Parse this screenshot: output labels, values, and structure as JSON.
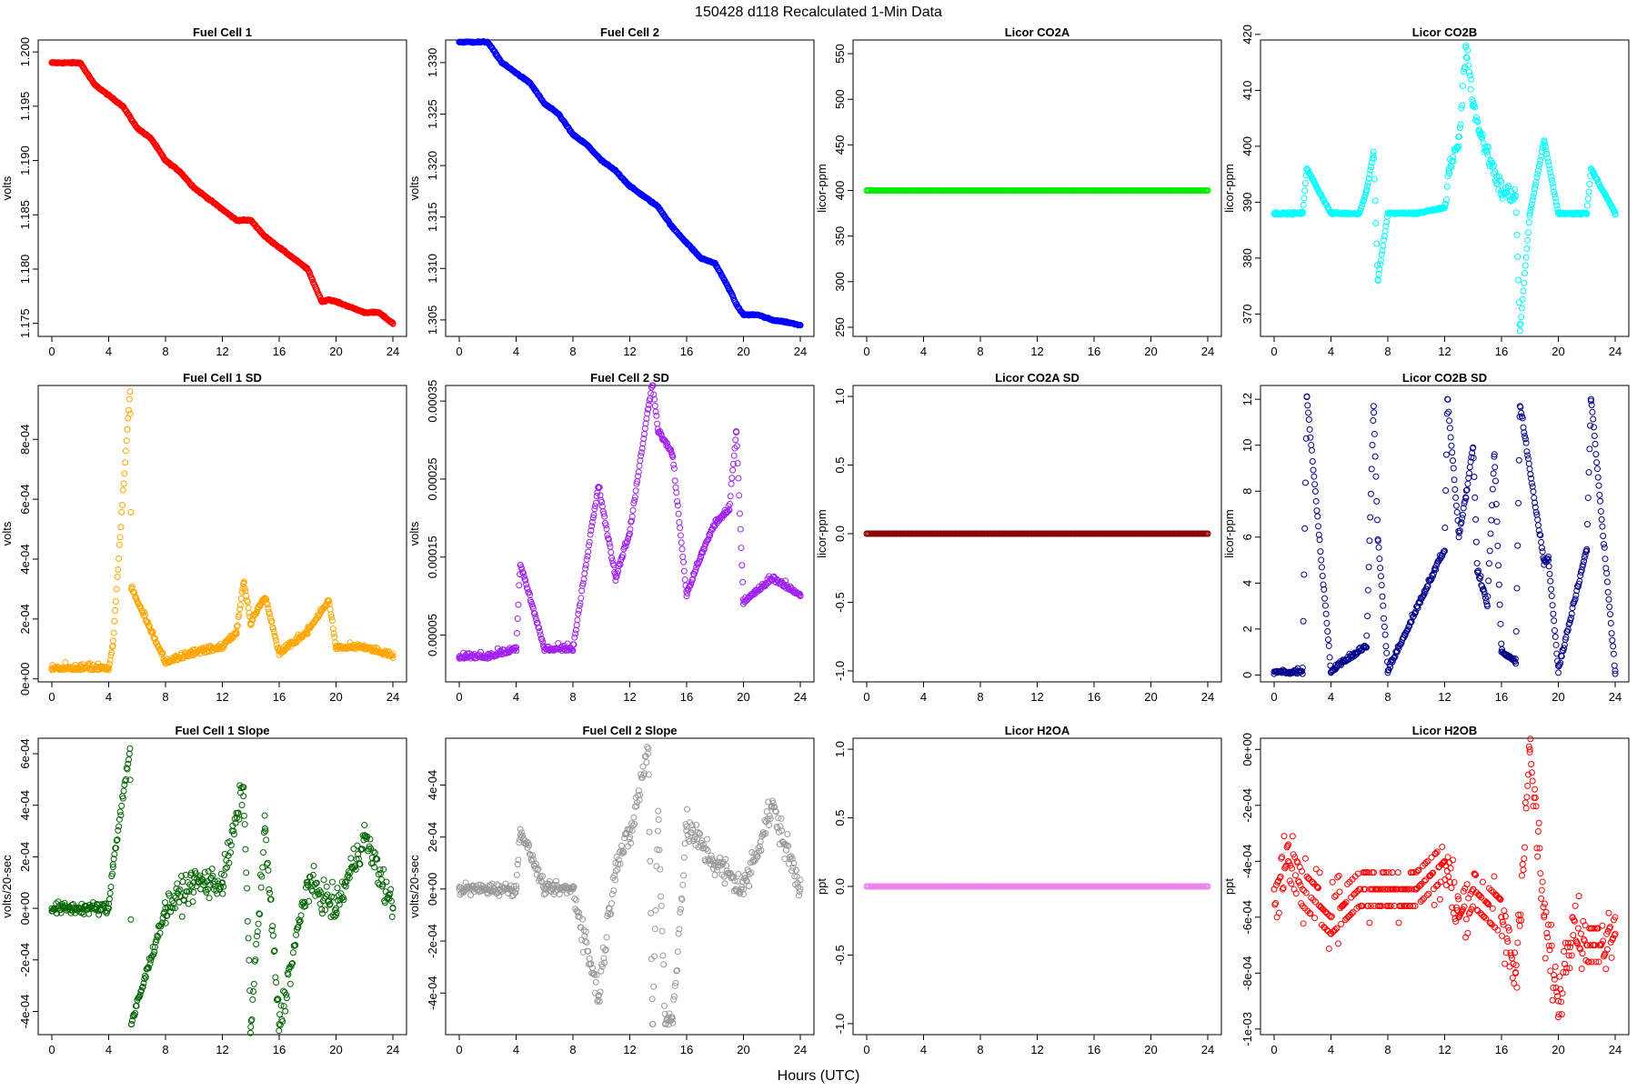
{
  "figure": {
    "title": "150428   d118   Recalculated 1-Min Data",
    "xlabel": "Hours (UTC)"
  },
  "chart_data": [
    {
      "id": "fc1",
      "type": "scatter",
      "title": "Fuel Cell 1",
      "ylabel": "volts",
      "color": "#ff0000",
      "xlim": [
        0,
        24
      ],
      "xticks": [
        0,
        4,
        8,
        12,
        16,
        20,
        24
      ],
      "ylim": [
        1.1738,
        1.2011
      ],
      "yticks": [
        1.175,
        1.18,
        1.185,
        1.19,
        1.195,
        1.2
      ],
      "yticklabels": [
        "1.175",
        "1.180",
        "1.185",
        "1.190",
        "1.195",
        "1.200"
      ],
      "x": [
        0,
        1,
        2,
        3,
        4,
        5,
        6,
        7,
        8,
        9,
        10,
        11,
        12,
        13,
        14,
        15,
        16,
        17,
        18,
        19,
        19.5,
        20,
        21,
        22,
        23,
        24
      ],
      "y": [
        1.199,
        1.199,
        1.199,
        1.197,
        1.196,
        1.195,
        1.193,
        1.192,
        1.19,
        1.189,
        1.1875,
        1.1865,
        1.1855,
        1.1845,
        1.1845,
        1.183,
        1.182,
        1.181,
        1.18,
        1.177,
        1.1772,
        1.177,
        1.1765,
        1.176,
        1.176,
        1.175
      ]
    },
    {
      "id": "fc2",
      "type": "scatter",
      "title": "Fuel Cell 2",
      "ylabel": "volts",
      "color": "#0000ff",
      "xlim": [
        0,
        24
      ],
      "xticks": [
        0,
        4,
        8,
        12,
        16,
        20,
        24
      ],
      "ylim": [
        1.3034,
        1.3322
      ],
      "yticks": [
        1.305,
        1.31,
        1.315,
        1.32,
        1.325,
        1.33
      ],
      "yticklabels": [
        "1.305",
        "1.310",
        "1.315",
        "1.320",
        "1.325",
        "1.330"
      ],
      "x": [
        0,
        1,
        2,
        3,
        4,
        5,
        6,
        7,
        8,
        9,
        10,
        11,
        12,
        13,
        14,
        15,
        16,
        17,
        18,
        19,
        19.5,
        20,
        21,
        22,
        23,
        24
      ],
      "y": [
        1.332,
        1.332,
        1.332,
        1.33,
        1.329,
        1.328,
        1.326,
        1.325,
        1.323,
        1.322,
        1.3205,
        1.3195,
        1.318,
        1.317,
        1.316,
        1.314,
        1.3125,
        1.311,
        1.3105,
        1.308,
        1.3065,
        1.3055,
        1.3055,
        1.305,
        1.3048,
        1.3045
      ]
    },
    {
      "id": "co2a",
      "type": "scatter",
      "title": "Licor CO2A",
      "ylabel": "licor-ppm",
      "color": "#00ee00",
      "xlim": [
        0,
        24
      ],
      "xticks": [
        0,
        4,
        8,
        12,
        16,
        20,
        24
      ],
      "ylim": [
        240,
        565
      ],
      "yticks": [
        250,
        300,
        350,
        400,
        450,
        500,
        550
      ],
      "yticklabels": [
        "250",
        "300",
        "350",
        "400",
        "450",
        "500",
        "550"
      ],
      "x": [
        0,
        24
      ],
      "y": [
        400,
        400
      ]
    },
    {
      "id": "co2b",
      "type": "scatter",
      "title": "Licor CO2B",
      "ylabel": "licor-ppm",
      "color": "#00ffff",
      "xlim": [
        0,
        24
      ],
      "xticks": [
        0,
        4,
        8,
        12,
        16,
        20,
        24
      ],
      "ylim": [
        366,
        419
      ],
      "yticks": [
        370,
        380,
        390,
        400,
        410,
        420
      ],
      "yticklabels": [
        "370",
        "380",
        "390",
        "400",
        "410",
        "420"
      ],
      "x": [
        0,
        2,
        2.3,
        4,
        6,
        6.5,
        7,
        7.3,
        8,
        10,
        12,
        12.3,
        13,
        13.5,
        14,
        14.5,
        15,
        16,
        17,
        17.3,
        18,
        19,
        20,
        22,
        22.3,
        24
      ],
      "y": [
        388,
        388,
        396,
        388,
        388,
        392,
        399,
        376,
        388,
        388,
        389,
        396,
        400,
        418,
        408,
        402,
        399,
        392,
        391,
        367,
        388,
        401,
        388,
        388,
        396,
        388
      ]
    },
    {
      "id": "fc1sd",
      "type": "scatter",
      "title": "Fuel Cell 1 SD",
      "ylabel": "volts",
      "color": "#ffa500",
      "xlim": [
        0,
        24
      ],
      "xticks": [
        0,
        4,
        8,
        12,
        16,
        20,
        24
      ],
      "ylim": [
        -1e-05,
        0.00098
      ],
      "yticks": [
        0,
        0.0002,
        0.0004,
        0.0006,
        0.0008
      ],
      "yticklabels": [
        "0e+00",
        "2e-04",
        "4e-04",
        "6e-04",
        "8e-04"
      ],
      "x": [
        0,
        2,
        4,
        4.3,
        5.5,
        5.6,
        8,
        10,
        12,
        13,
        13.5,
        14,
        15,
        16,
        18,
        19.5,
        20,
        22,
        24
      ],
      "y": [
        3e-05,
        3e-05,
        3e-05,
        0.00011,
        0.00096,
        0.0003,
        5e-05,
        8e-05,
        0.0001,
        0.00015,
        0.00032,
        0.00018,
        0.00027,
        8e-05,
        0.00015,
        0.00026,
        0.0001,
        0.0001,
        7e-05
      ]
    },
    {
      "id": "fc2sd",
      "type": "scatter",
      "title": "Fuel Cell 2 SD",
      "ylabel": "volts",
      "color": "#a020f0",
      "xlim": [
        0,
        24
      ],
      "xticks": [
        0,
        4,
        8,
        12,
        16,
        20,
        24
      ],
      "ylim": [
        -1e-05,
        0.00037
      ],
      "yticks": [
        5e-05,
        0.00015,
        0.00025,
        0.00035
      ],
      "yticklabels": [
        "0.00005",
        "0.00015",
        "0.00025",
        "0.00035"
      ],
      "x": [
        0,
        2,
        4,
        4.3,
        6,
        8,
        9.8,
        11,
        12,
        13.3,
        13.6,
        14,
        15,
        16,
        17,
        18,
        19,
        19.5,
        20,
        22,
        24
      ],
      "y": [
        2e-05,
        2e-05,
        3e-05,
        0.00014,
        3e-05,
        3e-05,
        0.00024,
        0.00012,
        0.00018,
        0.00034,
        0.00037,
        0.00031,
        0.00028,
        0.0001,
        0.00015,
        0.00019,
        0.00021,
        0.00031,
        9e-05,
        0.00012,
        0.0001
      ]
    },
    {
      "id": "co2asd",
      "type": "scatter",
      "title": "Licor CO2A SD",
      "ylabel": "licor-ppm",
      "color": "#8b0000",
      "xlim": [
        0,
        24
      ],
      "xticks": [
        0,
        4,
        8,
        12,
        16,
        20,
        24
      ],
      "ylim": [
        -1.08,
        1.08
      ],
      "yticks": [
        -1,
        -0.5,
        0,
        0.5,
        1
      ],
      "yticklabels": [
        "-1.0",
        "-0.5",
        "0.0",
        "0.5",
        "1.0"
      ],
      "x": [
        0,
        24
      ],
      "y": [
        0,
        0
      ]
    },
    {
      "id": "co2bsd",
      "type": "scatter",
      "title": "Licor CO2B SD",
      "ylabel": "licor-ppm",
      "color": "#00008b",
      "xlim": [
        0,
        24
      ],
      "xticks": [
        0,
        4,
        8,
        12,
        16,
        20,
        24
      ],
      "ylim": [
        -0.3,
        12.6
      ],
      "yticks": [
        0,
        2,
        4,
        6,
        8,
        10,
        12
      ],
      "yticklabels": [
        "0",
        "2",
        "4",
        "6",
        "8",
        "10",
        "12"
      ],
      "x": [
        0,
        2,
        2.3,
        4,
        6.5,
        7,
        7.3,
        8,
        12,
        12.2,
        13,
        13.5,
        14,
        14.3,
        15,
        15.5,
        16,
        17,
        17.3,
        19,
        19.3,
        20,
        22,
        22.3,
        24
      ],
      "y": [
        0.05,
        0.05,
        12.1,
        0.1,
        1.2,
        11.7,
        5.9,
        0.1,
        5.4,
        12.0,
        6,
        7.7,
        9.9,
        4.5,
        3,
        9.6,
        1,
        0.5,
        11.7,
        4.8,
        5,
        0.1,
        5.4,
        12,
        0.05
      ]
    },
    {
      "id": "fc1slope",
      "type": "scatter",
      "title": "Fuel Cell 1 Slope",
      "ylabel": "volts/20-sec",
      "color": "#006400",
      "xlim": [
        0,
        24
      ],
      "xticks": [
        0,
        4,
        8,
        12,
        16,
        20,
        24
      ],
      "ylim": [
        -0.00049,
        0.00066
      ],
      "yticks": [
        -0.0004,
        -0.0002,
        0,
        0.0002,
        0.0004,
        0.0006
      ],
      "yticklabels": [
        "-4e-04",
        "-2e-04",
        "0e+00",
        "2e-04",
        "4e-04",
        "6e-04"
      ],
      "x": [
        0,
        2,
        4,
        4.3,
        5.5,
        5.6,
        8,
        10,
        12,
        13.5,
        14,
        15,
        16,
        18,
        20,
        22,
        24
      ],
      "y": [
        0,
        0,
        0,
        0.00017,
        0.00062,
        -0.00045,
        0,
        0.0001,
        0.0001,
        0.00047,
        -0.00046,
        0.00031,
        -0.00045,
        0.0001,
        0,
        0.00028,
        0
      ]
    },
    {
      "id": "fc2slope",
      "type": "scatter",
      "title": "Fuel Cell 2 Slope",
      "ylabel": "volts/20-sec",
      "color": "#999999",
      "xlim": [
        0,
        24
      ],
      "xticks": [
        0,
        4,
        8,
        12,
        16,
        20,
        24
      ],
      "ylim": [
        -0.00056,
        0.00058
      ],
      "yticks": [
        -0.0004,
        -0.0002,
        0,
        0.0002,
        0.0004
      ],
      "yticklabels": [
        "-4e-04",
        "-2e-04",
        "0e+00",
        "2e-04",
        "4e-04"
      ],
      "x": [
        0,
        2,
        4,
        4.3,
        6,
        8,
        9.8,
        11,
        12,
        13.3,
        13.6,
        14,
        14.5,
        15,
        16,
        18,
        20,
        22,
        24
      ],
      "y": [
        0,
        0,
        0,
        0.00023,
        0,
        0,
        -0.00041,
        0.0001,
        0.0002,
        0.00054,
        -0.00052,
        0.0003,
        -0.00052,
        -0.0005,
        0.00024,
        0.0001,
        0,
        0.00032,
        0
      ]
    },
    {
      "id": "h2oa",
      "type": "scatter",
      "title": "Licor H2OA",
      "ylabel": "ppt",
      "color": "#ee82ee",
      "xlim": [
        0,
        24
      ],
      "xticks": [
        0,
        4,
        8,
        12,
        16,
        20,
        24
      ],
      "ylim": [
        -1.08,
        1.08
      ],
      "yticks": [
        -1,
        -0.5,
        0,
        0.5,
        1
      ],
      "yticklabels": [
        "-1.0",
        "-0.5",
        "0.0",
        "0.5",
        "1.0"
      ],
      "x": [
        0,
        24
      ],
      "y": [
        0,
        0
      ]
    },
    {
      "id": "h2ob",
      "type": "scatter",
      "title": "Licor H2OB",
      "ylabel": "ppt",
      "color": "#ff0000",
      "xlim": [
        0,
        24
      ],
      "xticks": [
        0,
        4,
        8,
        12,
        16,
        20,
        24
      ],
      "ylim": [
        -0.00102,
        4e-05
      ],
      "yticks": [
        -0.001,
        -0.0008,
        -0.0006,
        -0.0004,
        -0.0002,
        0
      ],
      "yticklabels": [
        "-1e-03",
        "-8e-04",
        "-6e-04",
        "-4e-04",
        "-2e-04",
        "0e+00"
      ],
      "x": [
        0,
        1,
        2,
        4,
        6,
        8,
        10,
        12,
        13,
        14,
        16,
        17,
        18,
        19,
        20,
        21,
        22,
        23,
        24
      ],
      "y": [
        -0.0005,
        -0.0004,
        -0.0005,
        -0.0006,
        -0.0005,
        -0.0005,
        -0.0005,
        -0.0004,
        -0.0006,
        -0.0005,
        -0.0006,
        -0.0008,
        0,
        -0.0006,
        -0.0009,
        -0.0006,
        -0.0007,
        -0.0007,
        -0.0006
      ]
    }
  ]
}
